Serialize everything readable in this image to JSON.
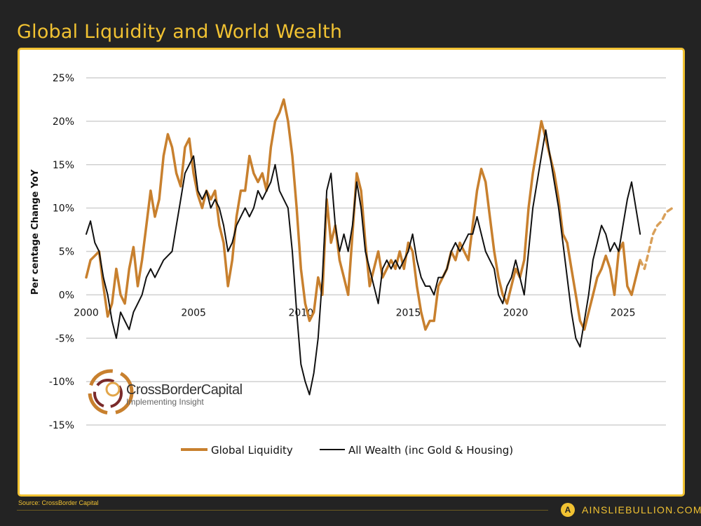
{
  "header": {
    "title": "Global Liquidity and World Wealth"
  },
  "footer": {
    "source": "Source: CrossBorder Capital",
    "brand": "AINSLIEBULLION.COM.AU",
    "brand_icon": "ainslie-a-logo-icon"
  },
  "logo": {
    "name": "CrossBorderCapital",
    "tagline": "Implementing Insight"
  },
  "chart_data": {
    "type": "line",
    "title": "",
    "ylabel": "Per centage Change YoY",
    "xlim": [
      2000,
      2027
    ],
    "ylim": [
      -15,
      25
    ],
    "y_ticks": [
      -15,
      -10,
      -5,
      0,
      5,
      10,
      15,
      20,
      25
    ],
    "y_tick_labels": [
      "-15%",
      "-10%",
      "-5%",
      "0%",
      "5%",
      "10%",
      "15%",
      "20%",
      "25%"
    ],
    "x_ticks": [
      2000,
      2005,
      2010,
      2015,
      2020,
      2025
    ],
    "x_tick_labels": [
      "2000",
      "2005",
      "2010",
      "2015",
      "2020",
      "2025"
    ],
    "grid": true,
    "legend": "bottom",
    "series": [
      {
        "name": "Global Liquidity",
        "color": "#c8802e",
        "points": [
          [
            2000.0,
            2
          ],
          [
            2000.2,
            4
          ],
          [
            2000.4,
            4.5
          ],
          [
            2000.6,
            5
          ],
          [
            2000.8,
            1
          ],
          [
            2001.0,
            -2.5
          ],
          [
            2001.2,
            -1
          ],
          [
            2001.4,
            3
          ],
          [
            2001.6,
            0
          ],
          [
            2001.8,
            -1
          ],
          [
            2002.0,
            3
          ],
          [
            2002.2,
            5.5
          ],
          [
            2002.4,
            1
          ],
          [
            2002.6,
            4
          ],
          [
            2002.8,
            8
          ],
          [
            2003.0,
            12
          ],
          [
            2003.2,
            9
          ],
          [
            2003.4,
            11
          ],
          [
            2003.6,
            16
          ],
          [
            2003.8,
            18.5
          ],
          [
            2004.0,
            17
          ],
          [
            2004.2,
            14
          ],
          [
            2004.4,
            12.5
          ],
          [
            2004.6,
            17
          ],
          [
            2004.8,
            18
          ],
          [
            2005.0,
            14
          ],
          [
            2005.2,
            11.5
          ],
          [
            2005.4,
            10
          ],
          [
            2005.6,
            12
          ],
          [
            2005.8,
            11
          ],
          [
            2006.0,
            12
          ],
          [
            2006.2,
            8
          ],
          [
            2006.4,
            6
          ],
          [
            2006.6,
            1
          ],
          [
            2006.8,
            4
          ],
          [
            2007.0,
            9
          ],
          [
            2007.2,
            12
          ],
          [
            2007.4,
            12
          ],
          [
            2007.6,
            16
          ],
          [
            2007.8,
            14
          ],
          [
            2008.0,
            13
          ],
          [
            2008.2,
            14
          ],
          [
            2008.4,
            12
          ],
          [
            2008.6,
            17
          ],
          [
            2008.8,
            20
          ],
          [
            2009.0,
            21
          ],
          [
            2009.2,
            22.5
          ],
          [
            2009.4,
            20
          ],
          [
            2009.6,
            16
          ],
          [
            2009.8,
            10
          ],
          [
            2010.0,
            3
          ],
          [
            2010.2,
            -1
          ],
          [
            2010.4,
            -3
          ],
          [
            2010.6,
            -2
          ],
          [
            2010.8,
            2
          ],
          [
            2011.0,
            0
          ],
          [
            2011.2,
            11
          ],
          [
            2011.4,
            6
          ],
          [
            2011.6,
            8
          ],
          [
            2011.8,
            4
          ],
          [
            2012.0,
            2
          ],
          [
            2012.2,
            0
          ],
          [
            2012.4,
            7
          ],
          [
            2012.6,
            14
          ],
          [
            2012.8,
            12
          ],
          [
            2013.0,
            6
          ],
          [
            2013.2,
            1
          ],
          [
            2013.4,
            3
          ],
          [
            2013.6,
            5
          ],
          [
            2013.8,
            2
          ],
          [
            2014.0,
            3
          ],
          [
            2014.2,
            4
          ],
          [
            2014.4,
            3
          ],
          [
            2014.6,
            5
          ],
          [
            2014.8,
            3
          ],
          [
            2015.0,
            6
          ],
          [
            2015.2,
            5
          ],
          [
            2015.4,
            1
          ],
          [
            2015.6,
            -2
          ],
          [
            2015.8,
            -4
          ],
          [
            2016.0,
            -3
          ],
          [
            2016.2,
            -3
          ],
          [
            2016.4,
            1
          ],
          [
            2016.6,
            2
          ],
          [
            2016.8,
            3
          ],
          [
            2017.0,
            5
          ],
          [
            2017.2,
            4
          ],
          [
            2017.4,
            6
          ],
          [
            2017.6,
            5
          ],
          [
            2017.8,
            4
          ],
          [
            2018.0,
            8
          ],
          [
            2018.2,
            12
          ],
          [
            2018.4,
            14.5
          ],
          [
            2018.6,
            13
          ],
          [
            2018.8,
            9
          ],
          [
            2019.0,
            5
          ],
          [
            2019.2,
            2
          ],
          [
            2019.4,
            0
          ],
          [
            2019.6,
            -1
          ],
          [
            2019.8,
            1
          ],
          [
            2020.0,
            3
          ],
          [
            2020.2,
            2
          ],
          [
            2020.4,
            4
          ],
          [
            2020.6,
            10
          ],
          [
            2020.8,
            14
          ],
          [
            2021.0,
            17
          ],
          [
            2021.2,
            20
          ],
          [
            2021.4,
            18
          ],
          [
            2021.6,
            16
          ],
          [
            2021.8,
            14
          ],
          [
            2022.0,
            11
          ],
          [
            2022.2,
            7
          ],
          [
            2022.4,
            6
          ],
          [
            2022.6,
            3
          ],
          [
            2022.8,
            0
          ],
          [
            2023.0,
            -3
          ],
          [
            2023.2,
            -4
          ],
          [
            2023.4,
            -2
          ],
          [
            2023.6,
            0
          ],
          [
            2023.8,
            2
          ],
          [
            2024.0,
            3
          ],
          [
            2024.2,
            4.5
          ],
          [
            2024.4,
            3
          ],
          [
            2024.6,
            0
          ],
          [
            2024.8,
            5
          ],
          [
            2025.0,
            6
          ],
          [
            2025.2,
            1
          ],
          [
            2025.4,
            0
          ],
          [
            2025.6,
            2
          ],
          [
            2025.8,
            4
          ]
        ]
      },
      {
        "name": "Global Liquidity (projection)",
        "color": "#d9a05a",
        "dashed": true,
        "points": [
          [
            2025.8,
            4
          ],
          [
            2026.0,
            3
          ],
          [
            2026.2,
            5
          ],
          [
            2026.4,
            7
          ],
          [
            2026.6,
            8
          ],
          [
            2026.8,
            8.5
          ],
          [
            2027.0,
            9.5
          ],
          [
            2027.3,
            10
          ]
        ]
      },
      {
        "name": "All Wealth (inc Gold & Housing)",
        "color": "#111111",
        "points": [
          [
            2000.0,
            7
          ],
          [
            2000.2,
            8.5
          ],
          [
            2000.4,
            6
          ],
          [
            2000.6,
            5
          ],
          [
            2000.8,
            2
          ],
          [
            2001.0,
            0
          ],
          [
            2001.2,
            -3
          ],
          [
            2001.4,
            -5
          ],
          [
            2001.6,
            -2
          ],
          [
            2001.8,
            -3
          ],
          [
            2002.0,
            -4
          ],
          [
            2002.2,
            -2
          ],
          [
            2002.4,
            -1
          ],
          [
            2002.6,
            0
          ],
          [
            2002.8,
            2
          ],
          [
            2003.0,
            3
          ],
          [
            2003.2,
            2
          ],
          [
            2003.4,
            3
          ],
          [
            2003.6,
            4
          ],
          [
            2003.8,
            4.5
          ],
          [
            2004.0,
            5
          ],
          [
            2004.2,
            8
          ],
          [
            2004.4,
            11
          ],
          [
            2004.6,
            14
          ],
          [
            2004.8,
            15
          ],
          [
            2005.0,
            16
          ],
          [
            2005.2,
            12
          ],
          [
            2005.4,
            11
          ],
          [
            2005.6,
            12
          ],
          [
            2005.8,
            10
          ],
          [
            2006.0,
            11
          ],
          [
            2006.2,
            10
          ],
          [
            2006.4,
            8
          ],
          [
            2006.6,
            5
          ],
          [
            2006.8,
            6
          ],
          [
            2007.0,
            8
          ],
          [
            2007.2,
            9
          ],
          [
            2007.4,
            10
          ],
          [
            2007.6,
            9
          ],
          [
            2007.8,
            10
          ],
          [
            2008.0,
            12
          ],
          [
            2008.2,
            11
          ],
          [
            2008.4,
            12
          ],
          [
            2008.6,
            13
          ],
          [
            2008.8,
            15
          ],
          [
            2009.0,
            12
          ],
          [
            2009.2,
            11
          ],
          [
            2009.4,
            10
          ],
          [
            2009.6,
            5
          ],
          [
            2009.8,
            -2
          ],
          [
            2010.0,
            -8
          ],
          [
            2010.2,
            -10
          ],
          [
            2010.4,
            -11.5
          ],
          [
            2010.6,
            -9
          ],
          [
            2010.8,
            -5
          ],
          [
            2011.0,
            2
          ],
          [
            2011.2,
            12
          ],
          [
            2011.4,
            14
          ],
          [
            2011.6,
            8
          ],
          [
            2011.8,
            5
          ],
          [
            2012.0,
            7
          ],
          [
            2012.2,
            5
          ],
          [
            2012.4,
            8
          ],
          [
            2012.6,
            13
          ],
          [
            2012.8,
            10
          ],
          [
            2013.0,
            5
          ],
          [
            2013.2,
            3
          ],
          [
            2013.4,
            1
          ],
          [
            2013.6,
            -1
          ],
          [
            2013.8,
            3
          ],
          [
            2014.0,
            4
          ],
          [
            2014.2,
            3
          ],
          [
            2014.4,
            4
          ],
          [
            2014.6,
            3
          ],
          [
            2014.8,
            4
          ],
          [
            2015.0,
            5
          ],
          [
            2015.2,
            7
          ],
          [
            2015.4,
            4
          ],
          [
            2015.6,
            2
          ],
          [
            2015.8,
            1
          ],
          [
            2016.0,
            1
          ],
          [
            2016.2,
            0
          ],
          [
            2016.4,
            2
          ],
          [
            2016.6,
            2
          ],
          [
            2016.8,
            3
          ],
          [
            2017.0,
            5
          ],
          [
            2017.2,
            6
          ],
          [
            2017.4,
            5
          ],
          [
            2017.6,
            6
          ],
          [
            2017.8,
            7
          ],
          [
            2018.0,
            7
          ],
          [
            2018.2,
            9
          ],
          [
            2018.4,
            7
          ],
          [
            2018.6,
            5
          ],
          [
            2018.8,
            4
          ],
          [
            2019.0,
            3
          ],
          [
            2019.2,
            0
          ],
          [
            2019.4,
            -1
          ],
          [
            2019.6,
            1
          ],
          [
            2019.8,
            2
          ],
          [
            2020.0,
            4
          ],
          [
            2020.2,
            2
          ],
          [
            2020.4,
            0
          ],
          [
            2020.6,
            5
          ],
          [
            2020.8,
            10
          ],
          [
            2021.0,
            13
          ],
          [
            2021.2,
            16
          ],
          [
            2021.4,
            19
          ],
          [
            2021.6,
            16
          ],
          [
            2021.8,
            13
          ],
          [
            2022.0,
            10
          ],
          [
            2022.2,
            6
          ],
          [
            2022.4,
            2
          ],
          [
            2022.6,
            -2
          ],
          [
            2022.8,
            -5
          ],
          [
            2023.0,
            -6
          ],
          [
            2023.2,
            -3
          ],
          [
            2023.4,
            0
          ],
          [
            2023.6,
            4
          ],
          [
            2023.8,
            6
          ],
          [
            2024.0,
            8
          ],
          [
            2024.2,
            7
          ],
          [
            2024.4,
            5
          ],
          [
            2024.6,
            6
          ],
          [
            2024.8,
            5
          ],
          [
            2025.0,
            8
          ],
          [
            2025.2,
            11
          ],
          [
            2025.4,
            13
          ],
          [
            2025.6,
            10
          ],
          [
            2025.8,
            7
          ]
        ]
      }
    ]
  }
}
